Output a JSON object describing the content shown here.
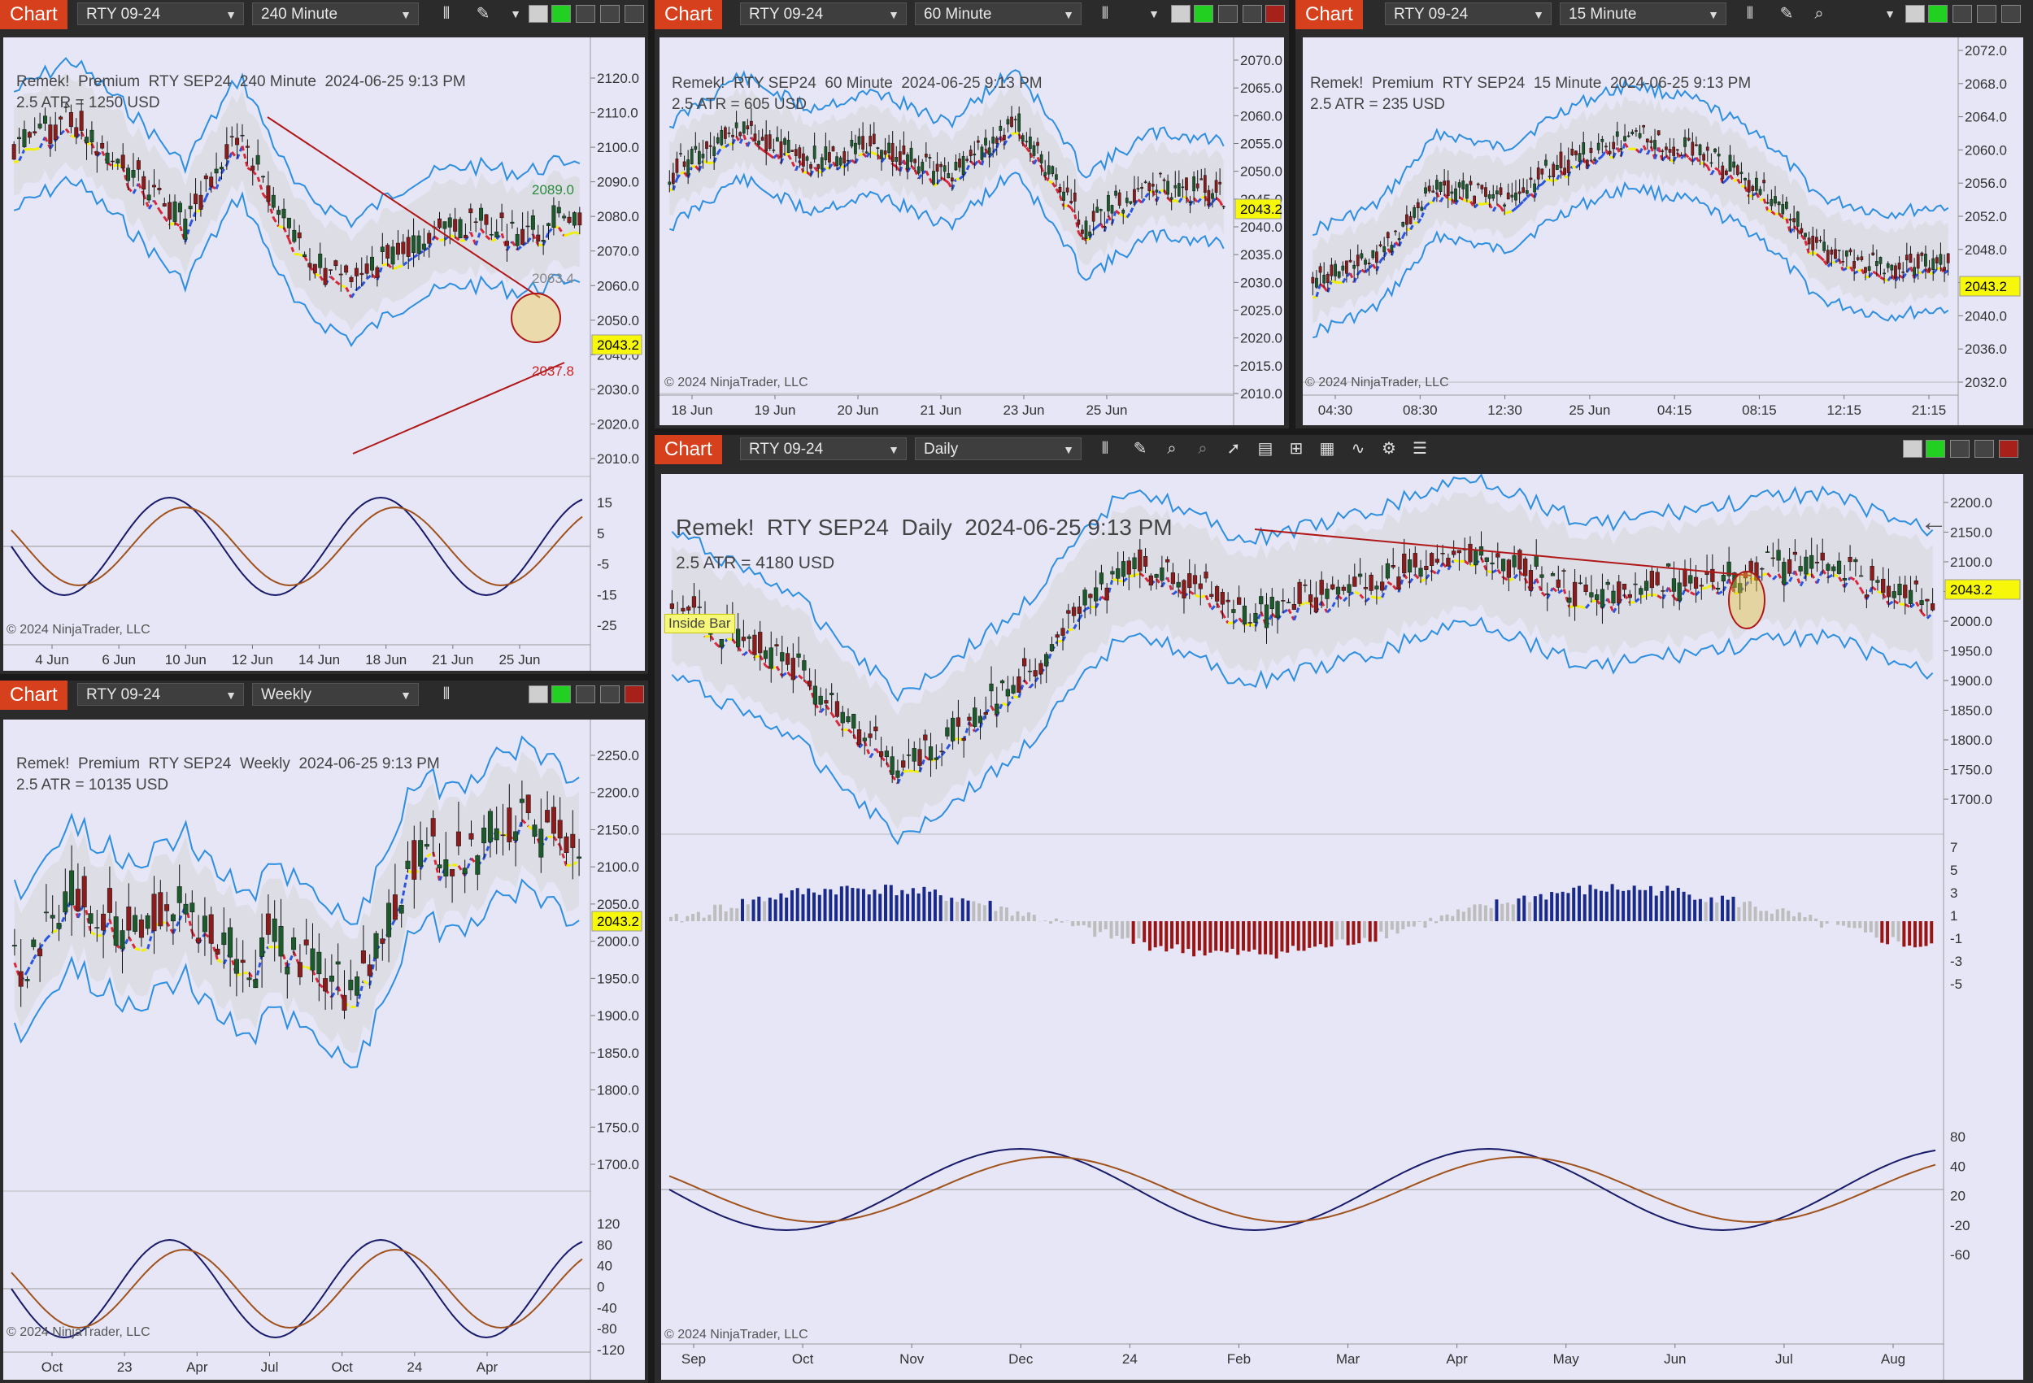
{
  "common": {
    "chart_label": "Chart",
    "instrument": "RTY 09-24",
    "copyright": "© 2024 NinjaTrader, LLC",
    "last_price": "2043.2",
    "title_prefix": "Remek!",
    "title_premium": "Premium",
    "title_contract": "RTY SEP24",
    "title_time": "2024-06-25 9:13 PM"
  },
  "colors": {
    "chart_button": "#d6401c",
    "plot_bg": "#e6e6f7",
    "band_line": "#2e8fe0",
    "candle_up": "#1c5a2c",
    "candle_down": "#8b1c1c",
    "trend_dn": "#d8263a",
    "trend_up": "#2a55e0",
    "trend_flat": "#f0f000",
    "last_price_bg": "#f7f70a",
    "osc_blue": "#1a1a6a",
    "osc_brown": "#a0521c"
  },
  "panels": [
    {
      "id": "p240",
      "timeframe": "240 Minute",
      "atr": "2.5 ATR = 1250 USD",
      "y_ticks": [
        "2120.0",
        "2110.0",
        "2100.0",
        "2090.0",
        "2080.0",
        "2070.0",
        "2060.0",
        "2050.0",
        "2040.0",
        "2030.0",
        "2020.0",
        "2010.0"
      ],
      "osc_ticks": [
        "15",
        "5",
        "-5",
        "-15",
        "-25"
      ],
      "x_ticks": [
        "4 Jun",
        "6 Jun",
        "10 Jun",
        "12 Jun",
        "14 Jun",
        "18 Jun",
        "21 Jun",
        "25 Jun"
      ],
      "labels": [
        "2089.0",
        "2063.4",
        "2037.8"
      ]
    },
    {
      "id": "p60",
      "timeframe": "60 Minute",
      "atr": "2.5 ATR = 605 USD",
      "y_ticks": [
        "2070.0",
        "2065.0",
        "2060.0",
        "2055.0",
        "2050.0",
        "2045.0",
        "2040.0",
        "2035.0",
        "2030.0",
        "2025.0",
        "2020.0",
        "2015.0",
        "2010.0"
      ],
      "x_ticks": [
        "18 Jun",
        "19 Jun",
        "20 Jun",
        "21 Jun",
        "23 Jun",
        "25 Jun"
      ]
    },
    {
      "id": "p15",
      "timeframe": "15 Minute",
      "atr": "2.5 ATR = 235 USD",
      "y_ticks": [
        "2072.0",
        "2068.0",
        "2064.0",
        "2060.0",
        "2056.0",
        "2052.0",
        "2048.0",
        "2044.0",
        "2040.0",
        "2036.0",
        "2032.0"
      ],
      "x_ticks": [
        "04:30",
        "08:30",
        "12:30",
        "25 Jun",
        "04:15",
        "08:15",
        "12:15",
        "21:15"
      ]
    },
    {
      "id": "pweek",
      "timeframe": "Weekly",
      "atr": "2.5 ATR = 10135 USD",
      "y_ticks": [
        "2250.0",
        "2200.0",
        "2150.0",
        "2100.0",
        "2050.0",
        "2000.0",
        "1950.0",
        "1900.0",
        "1850.0",
        "1800.0",
        "1750.0",
        "1700.0"
      ],
      "osc_ticks": [
        "120",
        "80",
        "40",
        "0",
        "-40",
        "-80",
        "-120"
      ],
      "x_ticks": [
        "Oct",
        "23",
        "Apr",
        "Jul",
        "Oct",
        "24",
        "Apr"
      ]
    },
    {
      "id": "pdaily",
      "timeframe": "Daily",
      "atr": "2.5 ATR = 4180 USD",
      "inside_bar": "Inside Bar",
      "y_ticks": [
        "2200.0",
        "2150.0",
        "2100.0",
        "2050.0",
        "2000.0",
        "1950.0",
        "1900.0",
        "1850.0",
        "1800.0",
        "1750.0",
        "1700.0"
      ],
      "hist_ticks": [
        "7",
        "5",
        "3",
        "1",
        "-1",
        "-3",
        "-5"
      ],
      "osc_ticks": [
        "80",
        "40",
        "20",
        "-20",
        "-60"
      ],
      "x_ticks": [
        "Sep",
        "Oct",
        "Nov",
        "Dec",
        "24",
        "Feb",
        "Mar",
        "Apr",
        "May",
        "Jun",
        "Jul",
        "Aug"
      ]
    }
  ]
}
